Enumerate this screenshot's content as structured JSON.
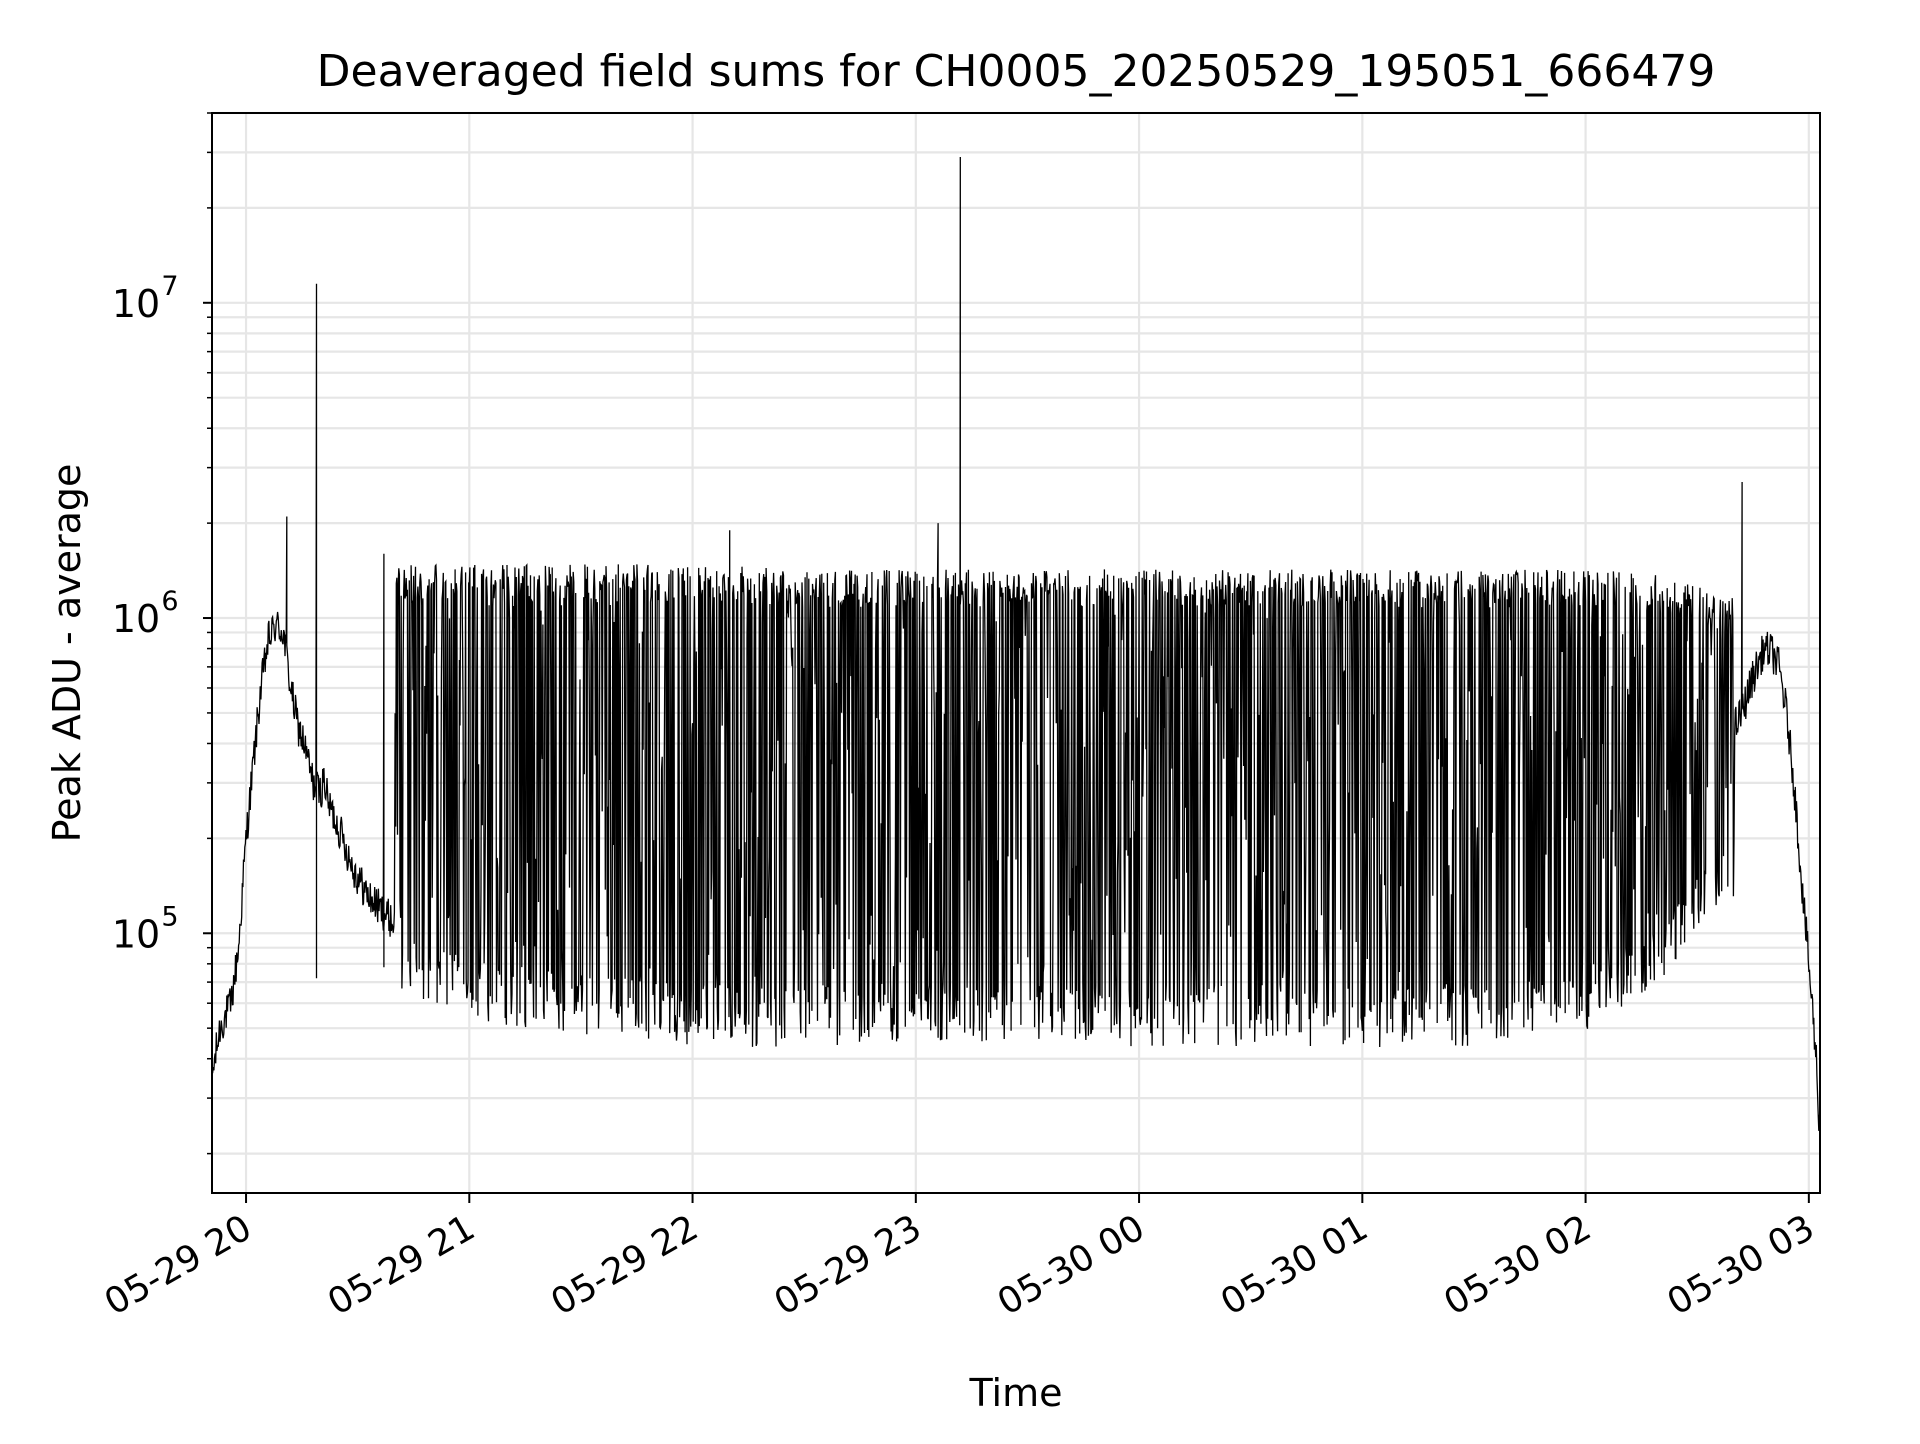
{
  "chart_data": {
    "type": "line",
    "title": "Deaveraged field sums for CH0005_20250529_195051_666479",
    "xlabel": "Time",
    "ylabel": "Peak ADU - average",
    "yscale": "log",
    "xlim": [
      "2025-05-29 19:50:51",
      "2025-05-30 03:03:00"
    ],
    "ylim": [
      15000,
      40000000
    ],
    "grid": true,
    "grid_color": "#e6e6e6",
    "line_color": "#000000",
    "x_ticks": [
      {
        "label": "05-29 20",
        "t": "2025-05-29 20:00"
      },
      {
        "label": "05-29 21",
        "t": "2025-05-29 21:00"
      },
      {
        "label": "05-29 22",
        "t": "2025-05-29 22:00"
      },
      {
        "label": "05-29 23",
        "t": "2025-05-29 23:00"
      },
      {
        "label": "05-30 00",
        "t": "2025-05-30 00:00"
      },
      {
        "label": "05-30 01",
        "t": "2025-05-30 01:00"
      },
      {
        "label": "05-30 02",
        "t": "2025-05-30 02:00"
      },
      {
        "label": "05-30 03",
        "t": "2025-05-30 03:00"
      }
    ],
    "y_ticks": [
      {
        "base": "10",
        "exp": "5",
        "value": 100000
      },
      {
        "base": "10",
        "exp": "6",
        "value": 1000000
      },
      {
        "base": "10",
        "exp": "7",
        "value": 10000000
      }
    ],
    "series": [
      {
        "x": [
          "2025-05-29 19:50:51",
          "2025-05-29 19:53",
          "2025-05-29 19:56",
          "2025-05-29 19:58",
          "2025-05-29 20:00",
          "2025-05-29 20:02",
          "2025-05-29 20:04",
          "2025-05-29 20:06",
          "2025-05-29 20:08",
          "2025-05-29 20:10",
          "2025-05-29 20:12",
          "2025-05-29 20:14",
          "2025-05-29 20:15",
          "2025-05-29 20:16",
          "2025-05-29 20:18",
          "2025-05-29 20:20",
          "2025-05-29 20:21",
          "2025-05-29 20:22",
          "2025-05-29 20:24",
          "2025-05-29 20:26",
          "2025-05-29 20:28",
          "2025-05-29 20:30",
          "2025-05-29 20:33",
          "2025-05-29 20:36",
          "2025-05-29 20:39",
          "2025-05-29 20:42",
          "2025-05-29 20:45",
          "2025-05-29 20:48",
          "2025-05-29 20:51",
          "2025-05-29 20:54",
          "2025-05-29 20:57",
          "2025-05-29 21:00",
          "2025-05-29 21:05",
          "2025-05-29 21:10",
          "2025-05-29 21:15",
          "2025-05-29 21:20",
          "2025-05-29 21:25",
          "2025-05-29 21:30",
          "2025-05-29 21:35",
          "2025-05-29 21:40",
          "2025-05-29 21:45",
          "2025-05-29 21:50",
          "2025-05-29 21:55",
          "2025-05-29 22:00",
          "2025-05-29 22:05",
          "2025-05-29 22:10",
          "2025-05-29 22:20",
          "2025-05-29 22:30",
          "2025-05-29 22:40",
          "2025-05-29 22:50",
          "2025-05-29 23:00",
          "2025-05-29 23:10",
          "2025-05-29 23:20",
          "2025-05-29 23:30",
          "2025-05-29 23:40",
          "2025-05-29 23:50",
          "2025-05-30 00:00",
          "2025-05-30 00:10",
          "2025-05-30 00:20",
          "2025-05-30 00:30",
          "2025-05-30 00:40",
          "2025-05-30 00:50",
          "2025-05-30 01:00",
          "2025-05-30 01:10",
          "2025-05-30 01:20",
          "2025-05-30 01:30",
          "2025-05-30 01:40",
          "2025-05-30 01:50",
          "2025-05-30 02:00",
          "2025-05-30 02:10",
          "2025-05-30 02:20",
          "2025-05-30 02:30",
          "2025-05-30 02:35",
          "2025-05-30 02:40",
          "2025-05-30 02:42",
          "2025-05-30 02:45",
          "2025-05-30 02:48",
          "2025-05-30 02:50",
          "2025-05-30 02:52",
          "2025-05-30 02:54",
          "2025-05-30 02:56",
          "2025-05-30 02:58",
          "2025-05-30 03:00",
          "2025-05-30 03:02",
          "2025-05-30 03:03"
        ],
        "values": [
          35000,
          50000,
          60000,
          90000,
          200000,
          350000,
          600000,
          850000,
          950000,
          900000,
          600000,
          450000,
          420000,
          380000,
          300000,
          280000,
          310000,
          260000,
          230000,
          200000,
          170000,
          150000,
          130000,
          120000,
          110000,
          100000,
          95000,
          90000,
          85000,
          80000,
          75000,
          72000,
          70000,
          68000,
          65000,
          65000,
          63000,
          62000,
          62000,
          60000,
          60000,
          60000,
          62000,
          65000,
          70000,
          75000,
          80000,
          90000,
          100000,
          120000,
          150000,
          180000,
          220000,
          260000,
          300000,
          350000,
          400000,
          420000,
          450000,
          480000,
          500000,
          520000,
          540000,
          560000,
          550000,
          530000,
          500000,
          470000,
          430000,
          400000,
          380000,
          400000,
          420000,
          450000,
          500000,
          650000,
          800000,
          780000,
          700000,
          500000,
          300000,
          150000,
          80000,
          40000,
          22000
        ]
      }
    ],
    "envelope": {
      "x": [
        "2025-05-29 20:40",
        "2025-05-29 21:00",
        "2025-05-29 21:30",
        "2025-05-29 22:00",
        "2025-05-29 22:30",
        "2025-05-29 23:00",
        "2025-05-29 23:30",
        "2025-05-30 00:00",
        "2025-05-30 00:30",
        "2025-05-30 01:00",
        "2025-05-30 01:30",
        "2025-05-30 02:00",
        "2025-05-30 02:20",
        "2025-05-30 02:40"
      ],
      "upper": [
        1400000,
        1400000,
        1400000,
        1400000,
        1350000,
        1350000,
        1350000,
        1350000,
        1350000,
        1350000,
        1350000,
        1350000,
        1300000,
        1100000
      ],
      "lower": [
        75000,
        60000,
        55000,
        50000,
        50000,
        52000,
        52000,
        50000,
        50000,
        50000,
        50000,
        55000,
        80000,
        150000
      ]
    },
    "spikes": [
      {
        "t": "2025-05-29 20:11",
        "peak": 2100000
      },
      {
        "t": "2025-05-29 20:19",
        "peak": 11500000,
        "low": 72000
      },
      {
        "t": "2025-05-29 20:37",
        "peak": 1600000,
        "low": 78000
      },
      {
        "t": "2025-05-29 22:10",
        "peak": 1900000
      },
      {
        "t": "2025-05-29 23:06",
        "peak": 2000000
      },
      {
        "t": "2025-05-29 23:12",
        "peak": 29000000
      },
      {
        "t": "2025-05-30 02:42",
        "peak": 2700000
      }
    ]
  }
}
